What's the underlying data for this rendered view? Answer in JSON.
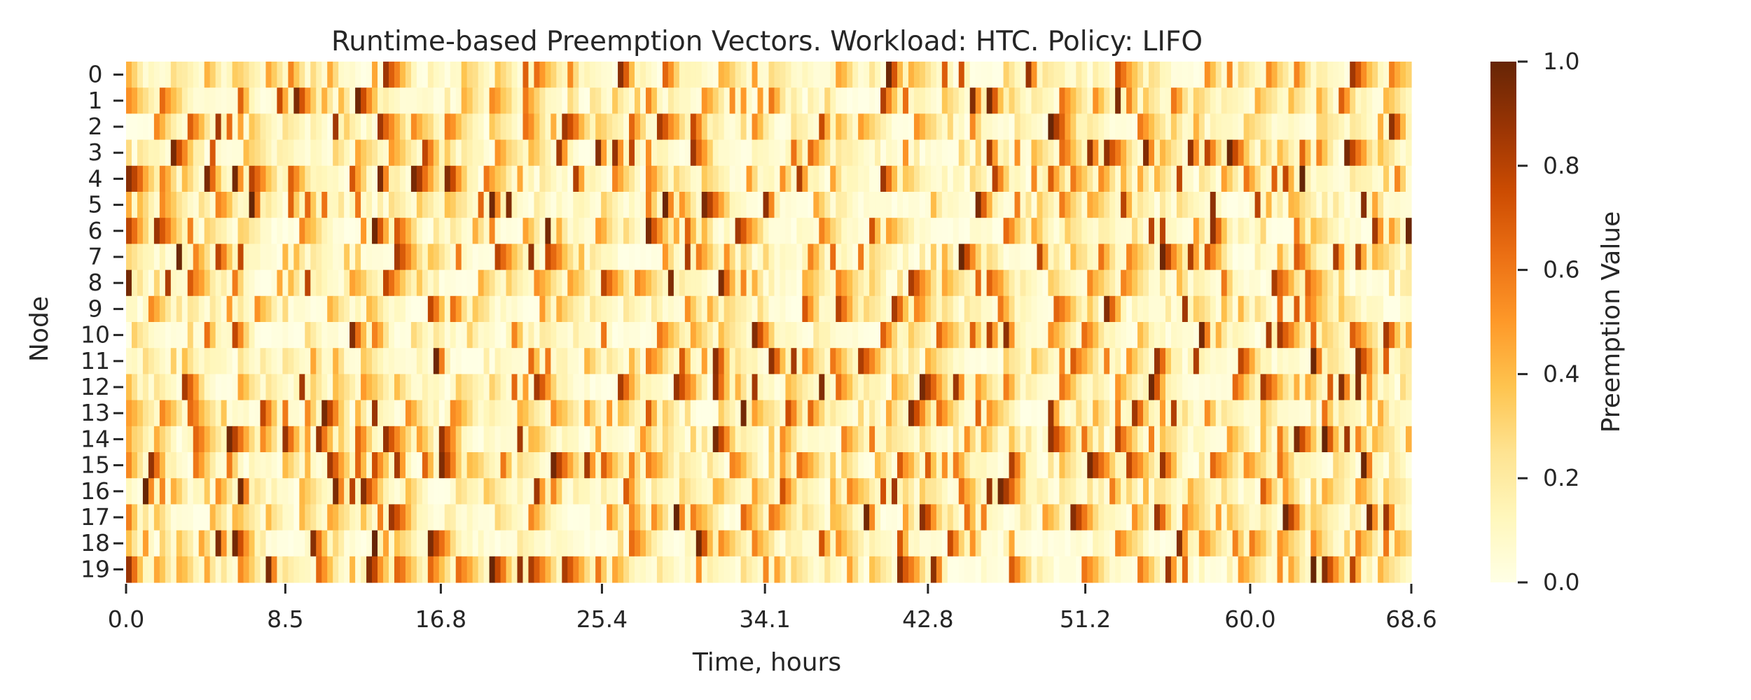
{
  "chart_data": {
    "type": "heatmap",
    "title": "Runtime-based Preemption Vectors. Workload: HTC. Policy: LIFO",
    "xlabel": "Time, hours",
    "ylabel": "Node",
    "rows": [
      "0",
      "1",
      "2",
      "3",
      "4",
      "5",
      "6",
      "7",
      "8",
      "9",
      "10",
      "11",
      "12",
      "13",
      "14",
      "15",
      "16",
      "17",
      "18",
      "19"
    ],
    "x_ticks": [
      "0.0",
      "8.5",
      "16.8",
      "25.4",
      "34.1",
      "42.8",
      "51.2",
      "60.0",
      "68.6"
    ],
    "xlim": [
      0,
      68.6
    ],
    "colorbar": {
      "label": "Preemption Value",
      "ticks": [
        "0.0",
        "0.2",
        "0.4",
        "0.6",
        "0.8",
        "1.0"
      ],
      "range": [
        0.0,
        1.0
      ],
      "colormap": "YlOrBr",
      "colors": [
        "#ffffe5",
        "#fff7bc",
        "#fee391",
        "#fec44f",
        "#fe9929",
        "#ec7014",
        "#cc4c02",
        "#993404",
        "#662506"
      ]
    },
    "grid": false,
    "legend": "right",
    "cell_columns": 230
  }
}
